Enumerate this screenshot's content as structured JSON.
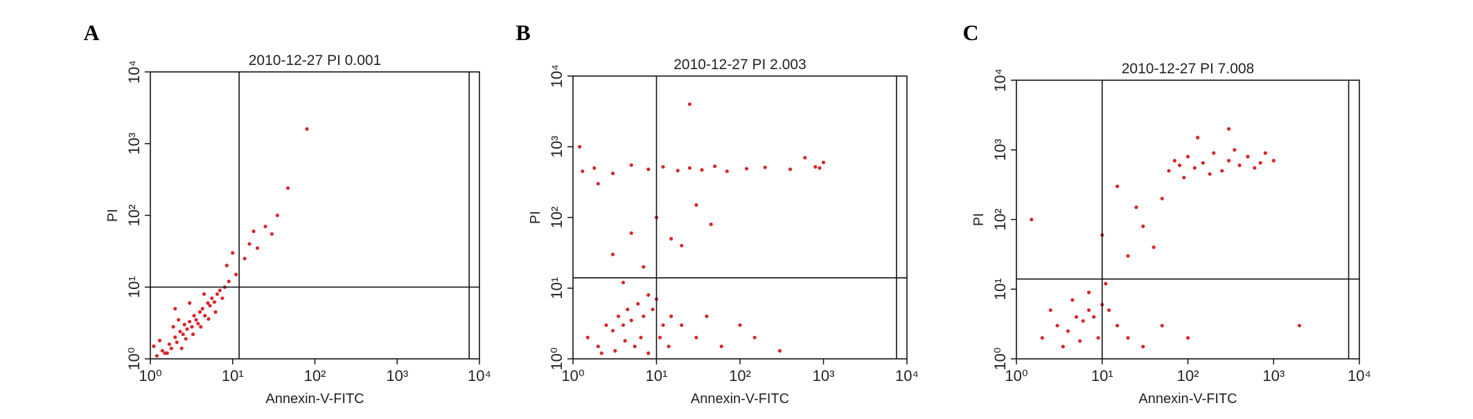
{
  "chart_data": [
    {
      "type": "scatter",
      "panel": "A",
      "title": "2010-12-27 PI 0.001",
      "x_label": "Annexin-V-FITC",
      "y_label": "PI",
      "color": "#d7262c",
      "log_x": true,
      "log_y": true,
      "xlim": [
        1,
        10000
      ],
      "ylim": [
        1,
        10000
      ],
      "xticks": [
        {
          "value": 1,
          "label": "10⁰"
        },
        {
          "value": 10,
          "label": "10¹"
        },
        {
          "value": 100,
          "label": "10²"
        },
        {
          "value": 1000,
          "label": "10³"
        },
        {
          "value": 10000,
          "label": "10⁴"
        }
      ],
      "yticks": [
        {
          "value": 1,
          "label": "10⁰"
        },
        {
          "value": 10,
          "label": "10¹"
        },
        {
          "value": 100,
          "label": "10²"
        },
        {
          "value": 1000,
          "label": "10³"
        },
        {
          "value": 10000,
          "label": "10⁴"
        }
      ],
      "vlines": [
        12,
        7500
      ],
      "hlines": [
        10
      ],
      "x": [
        1.2,
        1.4,
        1.5,
        1.7,
        1.8,
        2,
        2.1,
        2.3,
        2.5,
        2.6,
        2.8,
        3,
        3.2,
        3.4,
        3.6,
        3.8,
        4,
        4.3,
        4.6,
        5,
        5.3,
        5.6,
        6,
        6.5,
        7,
        7.5,
        8,
        9,
        1.3,
        1.6,
        2.2,
        2.7,
        3.3,
        4.1,
        5.1,
        6.2,
        3,
        4.5,
        2,
        8.5,
        10,
        11,
        14,
        16,
        18,
        20,
        25,
        30,
        35,
        47,
        80,
        1.1,
        1.9,
        2.4
      ],
      "y": [
        1.1,
        1.3,
        1.2,
        1.6,
        1.4,
        2,
        1.7,
        2.4,
        2.2,
        3,
        2.6,
        3.3,
        2.8,
        4,
        3.5,
        3.1,
        4.5,
        5,
        4,
        6,
        5.5,
        7,
        6.2,
        8,
        9,
        7,
        10,
        12,
        1.8,
        1.2,
        3.5,
        1.9,
        2.2,
        2.8,
        3.6,
        4.5,
        6,
        8,
        5,
        20,
        30,
        15,
        25,
        40,
        60,
        35,
        70,
        55,
        100,
        240,
        1600,
        1.5,
        2.8,
        1.4
      ]
    },
    {
      "type": "scatter",
      "panel": "B",
      "title": "2010-12-27 PI 2.003",
      "x_label": "Annexin-V-FITC",
      "y_label": "PI",
      "color": "#d7262c",
      "log_x": true,
      "log_y": true,
      "xlim": [
        1,
        10000
      ],
      "ylim": [
        1,
        10000
      ],
      "xticks": [
        {
          "value": 1,
          "label": "10⁰"
        },
        {
          "value": 10,
          "label": "10¹"
        },
        {
          "value": 100,
          "label": "10²"
        },
        {
          "value": 1000,
          "label": "10³"
        },
        {
          "value": 10000,
          "label": "10⁴"
        }
      ],
      "yticks": [
        {
          "value": 1,
          "label": "10⁰"
        },
        {
          "value": 10,
          "label": "10¹"
        },
        {
          "value": 100,
          "label": "10²"
        },
        {
          "value": 1000,
          "label": "10³"
        },
        {
          "value": 10000,
          "label": "10⁴"
        }
      ],
      "vlines": [
        10,
        7500
      ],
      "hlines": [
        14
      ],
      "x": [
        1.5,
        2,
        2.5,
        3,
        3.5,
        4,
        4.5,
        5,
        6,
        7,
        8,
        9,
        10,
        12,
        15,
        2.2,
        3.2,
        4.2,
        5.5,
        6.5,
        8,
        11,
        14,
        20,
        30,
        40,
        60,
        100,
        150,
        300,
        1.3,
        1.8,
        3,
        5,
        8,
        12,
        18,
        25,
        35,
        50,
        70,
        120,
        200,
        400,
        800,
        1000,
        600,
        3,
        5,
        10,
        15,
        30,
        7,
        20,
        45,
        1.2,
        2,
        900,
        25,
        4
      ],
      "y": [
        2,
        1.5,
        3,
        2.5,
        4,
        3,
        5,
        3.5,
        6,
        4,
        8,
        5,
        7,
        3,
        4,
        1.2,
        1.3,
        1.8,
        1.5,
        2,
        1.2,
        2,
        1.5,
        3,
        2,
        4,
        1.5,
        3,
        2,
        1.3,
        450,
        500,
        420,
        550,
        480,
        520,
        460,
        500,
        470,
        530,
        450,
        490,
        510,
        480,
        520,
        600,
        700,
        30,
        60,
        100,
        50,
        150,
        20,
        40,
        80,
        1000,
        300,
        500,
        4000,
        12
      ]
    },
    {
      "type": "scatter",
      "panel": "C",
      "title": "2010-12-27 PI 7.008",
      "x_label": "Annexin-V-FITC",
      "y_label": "PI",
      "color": "#d7262c",
      "log_x": true,
      "log_y": true,
      "xlim": [
        1,
        10000
      ],
      "ylim": [
        1,
        10000
      ],
      "xticks": [
        {
          "value": 1,
          "label": "10⁰"
        },
        {
          "value": 10,
          "label": "10¹"
        },
        {
          "value": 100,
          "label": "10²"
        },
        {
          "value": 1000,
          "label": "10³"
        },
        {
          "value": 10000,
          "label": "10⁴"
        }
      ],
      "yticks": [
        {
          "value": 1,
          "label": "10⁰"
        },
        {
          "value": 10,
          "label": "10¹"
        },
        {
          "value": 100,
          "label": "10²"
        },
        {
          "value": 1000,
          "label": "10³"
        },
        {
          "value": 10000,
          "label": "10⁴"
        }
      ],
      "vlines": [
        10,
        7500
      ],
      "hlines": [
        14
      ],
      "x": [
        2,
        3,
        4,
        5,
        6,
        7,
        8,
        10,
        12,
        15,
        3.5,
        5.5,
        9,
        20,
        30,
        50,
        100,
        2.5,
        4.5,
        7,
        11,
        60,
        70,
        80,
        100,
        120,
        150,
        200,
        250,
        300,
        400,
        500,
        700,
        1000,
        90,
        180,
        350,
        600,
        800,
        130,
        20,
        30,
        50,
        15,
        40,
        1.5,
        300,
        2000,
        10,
        25
      ],
      "y": [
        2,
        3,
        2.5,
        4,
        3.5,
        5,
        4,
        6,
        5,
        3,
        1.5,
        1.8,
        2,
        2,
        1.5,
        3,
        2,
        5,
        7,
        9,
        12,
        500,
        700,
        600,
        800,
        550,
        650,
        900,
        500,
        700,
        600,
        800,
        650,
        700,
        400,
        450,
        1000,
        550,
        900,
        1500,
        30,
        80,
        200,
        300,
        40,
        100,
        2000,
        3,
        60,
        150
      ]
    }
  ]
}
